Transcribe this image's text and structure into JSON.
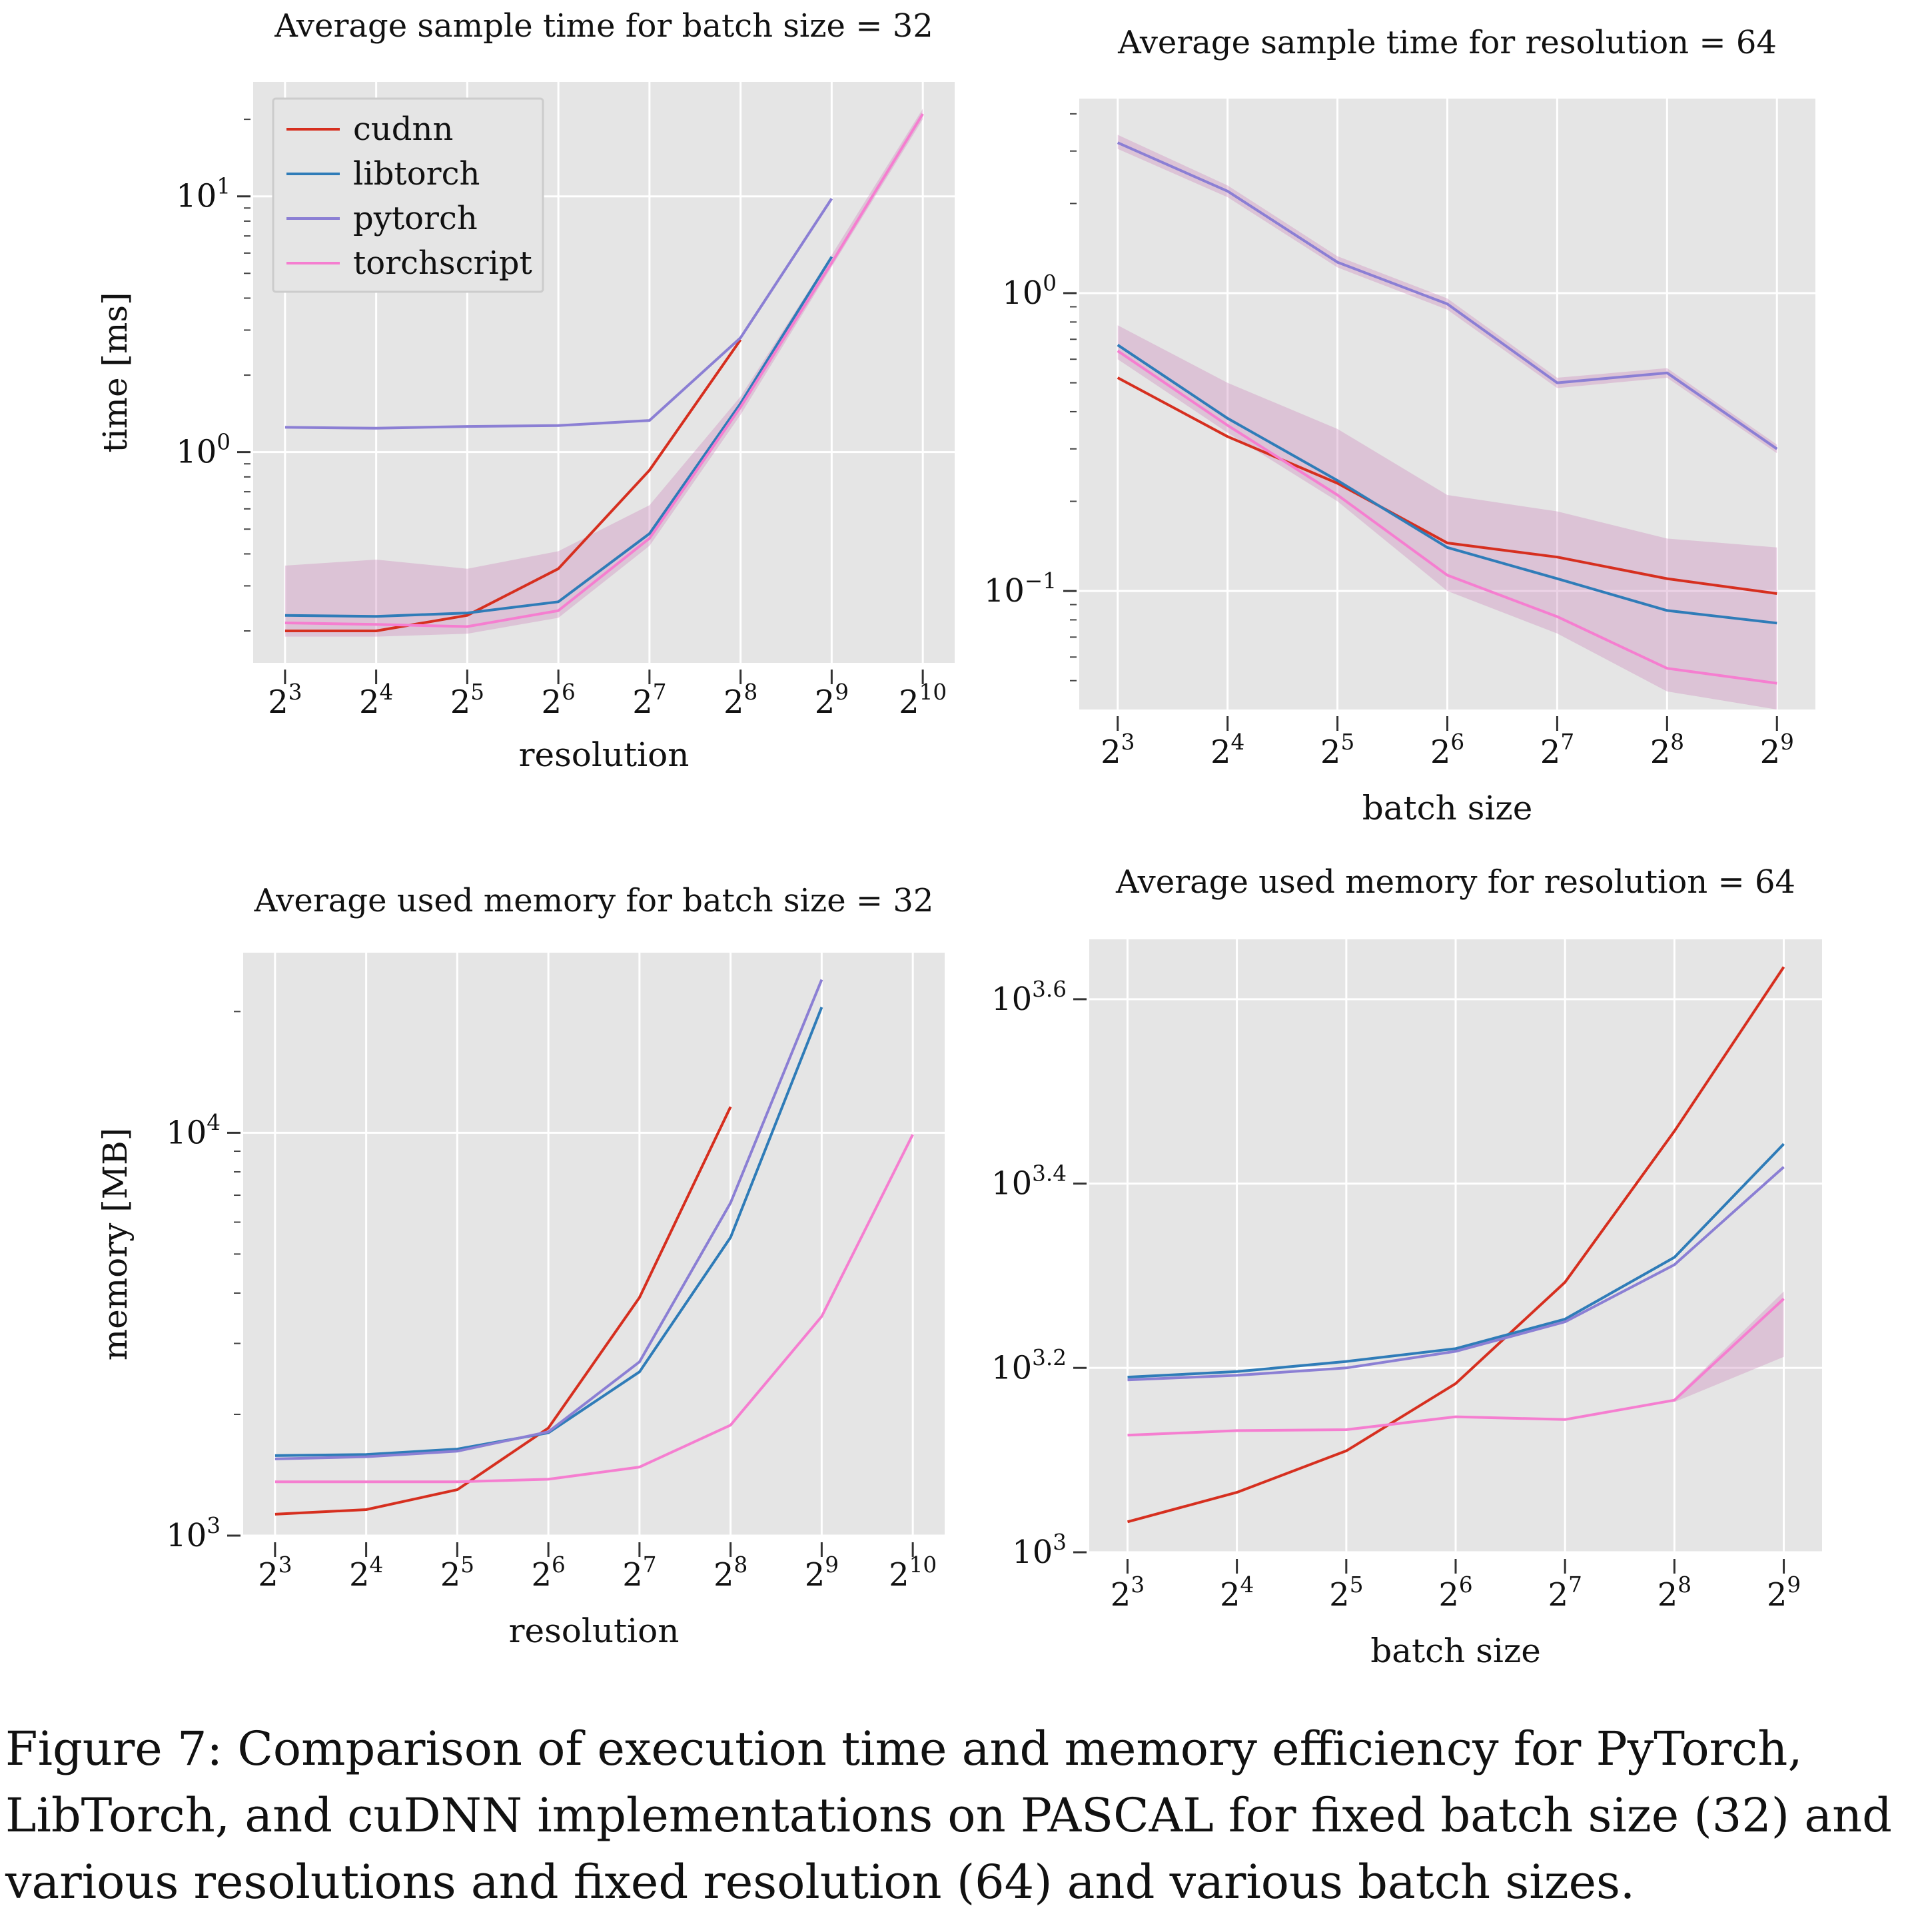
{
  "legend": {
    "entries": [
      {
        "name": "cudnn",
        "color": "#d62f1f"
      },
      {
        "name": "libtorch",
        "color": "#2f7cb8"
      },
      {
        "name": "pytorch",
        "color": "#8b7fd4"
      },
      {
        "name": "torchscript",
        "color": "#f57ed0"
      }
    ]
  },
  "caption": "Figure 7: Comparison of execution time and memory efficiency for PyTorch, LibTorch, and cuDNN implementations on PASCAL for fixed batch size (32) and various resolutions and fixed resolution (64) and various batch sizes.",
  "chart_data": [
    {
      "type": "line",
      "title": "Average sample time for batch size = 32",
      "xlabel": "resolution",
      "ylabel": "time [ms]",
      "x_ticks": [
        "2^3",
        "2^4",
        "2^5",
        "2^6",
        "2^7",
        "2^8",
        "2^9",
        "2^10"
      ],
      "x_exponents": [
        3,
        4,
        5,
        6,
        7,
        8,
        9,
        10
      ],
      "y_scale": "log",
      "ylim": [
        0.15,
        28
      ],
      "y_ticks": [
        {
          "value": 1,
          "label": "10^0"
        },
        {
          "value": 10,
          "label": "10^1"
        }
      ],
      "grid": true,
      "legend": "top-left",
      "series": [
        {
          "name": "cudnn",
          "x": [
            8,
            16,
            32,
            64,
            128,
            256
          ],
          "values": [
            0.2,
            0.2,
            0.23,
            0.35,
            0.85,
            2.75
          ]
        },
        {
          "name": "libtorch",
          "x": [
            8,
            16,
            32,
            64,
            128,
            256,
            512
          ],
          "values": [
            0.23,
            0.228,
            0.235,
            0.26,
            0.48,
            1.55,
            5.8
          ]
        },
        {
          "name": "pytorch",
          "x": [
            8,
            16,
            32,
            64,
            128,
            256,
            512
          ],
          "values": [
            1.25,
            1.24,
            1.26,
            1.27,
            1.33,
            2.8,
            9.8
          ]
        },
        {
          "name": "torchscript",
          "x": [
            8,
            16,
            32,
            64,
            128,
            256,
            512,
            1024
          ],
          "values": [
            0.215,
            0.212,
            0.208,
            0.24,
            0.46,
            1.5,
            5.5,
            21
          ]
        }
      ],
      "bands": [
        {
          "x": [
            8,
            16,
            32,
            64,
            128,
            256,
            512,
            1024
          ],
          "low": [
            0.19,
            0.19,
            0.195,
            0.225,
            0.43,
            1.4,
            5.3,
            20
          ],
          "high": [
            0.36,
            0.38,
            0.35,
            0.41,
            0.62,
            1.65,
            5.9,
            22
          ]
        }
      ]
    },
    {
      "type": "line",
      "title": "Average sample time for resolution = 64",
      "xlabel": "batch size",
      "ylabel": "",
      "x_ticks": [
        "2^3",
        "2^4",
        "2^5",
        "2^6",
        "2^7",
        "2^8",
        "2^9"
      ],
      "x_exponents": [
        3,
        4,
        5,
        6,
        7,
        8,
        9
      ],
      "y_scale": "log",
      "ylim": [
        0.04,
        4.5
      ],
      "y_ticks": [
        {
          "value": 0.1,
          "label": "10^-1"
        },
        {
          "value": 1,
          "label": "10^0"
        }
      ],
      "grid": true,
      "series": [
        {
          "name": "cudnn",
          "x": [
            8,
            16,
            32,
            64,
            128,
            256,
            512
          ],
          "values": [
            0.52,
            0.33,
            0.23,
            0.145,
            0.13,
            0.11,
            0.098
          ]
        },
        {
          "name": "libtorch",
          "x": [
            8,
            16,
            32,
            64,
            128,
            256,
            512
          ],
          "values": [
            0.67,
            0.38,
            0.235,
            0.14,
            0.11,
            0.086,
            0.078
          ]
        },
        {
          "name": "pytorch",
          "x": [
            8,
            16,
            32,
            64,
            128,
            256,
            512
          ],
          "values": [
            3.2,
            2.2,
            1.27,
            0.92,
            0.5,
            0.54,
            0.3
          ]
        },
        {
          "name": "torchscript",
          "x": [
            8,
            16,
            32,
            64,
            128,
            256,
            512
          ],
          "values": [
            0.64,
            0.36,
            0.21,
            0.113,
            0.082,
            0.055,
            0.049
          ]
        }
      ],
      "bands": [
        {
          "x": [
            8,
            16,
            32,
            64,
            128,
            256,
            512
          ],
          "low": [
            0.6,
            0.34,
            0.2,
            0.1,
            0.072,
            0.046,
            0.04
          ],
          "high": [
            0.78,
            0.5,
            0.35,
            0.21,
            0.185,
            0.15,
            0.14
          ]
        },
        {
          "x": [
            8,
            16,
            32,
            64,
            128,
            256,
            512
          ],
          "low": [
            3.05,
            2.1,
            1.22,
            0.88,
            0.48,
            0.52,
            0.29
          ],
          "high": [
            3.4,
            2.3,
            1.33,
            0.96,
            0.52,
            0.56,
            0.31
          ]
        }
      ]
    },
    {
      "type": "line",
      "title": "Average used memory for batch size = 32",
      "xlabel": "resolution",
      "ylabel": "memory [MB]",
      "x_ticks": [
        "2^3",
        "2^4",
        "2^5",
        "2^6",
        "2^7",
        "2^8",
        "2^9",
        "2^10"
      ],
      "x_exponents": [
        3,
        4,
        5,
        6,
        7,
        8,
        9,
        10
      ],
      "y_scale": "log",
      "ylim": [
        1000,
        28000
      ],
      "y_ticks": [
        {
          "value": 1000,
          "label": "10^3"
        },
        {
          "value": 10000,
          "label": "10^4"
        }
      ],
      "grid": true,
      "series": [
        {
          "name": "cudnn",
          "x": [
            8,
            16,
            32,
            64,
            128,
            256
          ],
          "values": [
            1130,
            1160,
            1300,
            1850,
            3900,
            11600
          ]
        },
        {
          "name": "libtorch",
          "x": [
            8,
            16,
            32,
            64,
            128,
            256,
            512
          ],
          "values": [
            1580,
            1590,
            1640,
            1800,
            2550,
            5500,
            20500
          ]
        },
        {
          "name": "pytorch",
          "x": [
            8,
            16,
            32,
            64,
            128,
            256,
            512
          ],
          "values": [
            1550,
            1570,
            1620,
            1810,
            2700,
            6700,
            24000
          ]
        },
        {
          "name": "torchscript",
          "x": [
            8,
            16,
            32,
            64,
            128,
            256,
            512,
            1024
          ],
          "values": [
            1360,
            1360,
            1360,
            1380,
            1480,
            1880,
            3500,
            9900
          ]
        }
      ]
    },
    {
      "type": "line",
      "title": "Average used memory for resolution = 64",
      "xlabel": "batch size",
      "ylabel": "",
      "x_ticks": [
        "2^3",
        "2^4",
        "2^5",
        "2^6",
        "2^7",
        "2^8",
        "2^9"
      ],
      "x_exponents": [
        3,
        4,
        5,
        6,
        7,
        8,
        9
      ],
      "y_scale": "log10exp",
      "ylim": [
        3.0,
        3.665
      ],
      "y_ticks": [
        {
          "value": 3.0,
          "label": "10^3"
        },
        {
          "value": 3.2,
          "label": "10^3.2"
        },
        {
          "value": 3.4,
          "label": "10^3.4"
        },
        {
          "value": 3.6,
          "label": "10^3.6"
        }
      ],
      "grid": true,
      "series": [
        {
          "name": "cudnn",
          "x": [
            8,
            16,
            32,
            64,
            128,
            256,
            512
          ],
          "values": [
            3.033,
            3.065,
            3.11,
            3.183,
            3.293,
            3.457,
            3.635
          ]
        },
        {
          "name": "libtorch",
          "x": [
            8,
            16,
            32,
            64,
            128,
            256,
            512
          ],
          "values": [
            3.19,
            3.196,
            3.207,
            3.221,
            3.253,
            3.32,
            3.443
          ]
        },
        {
          "name": "pytorch",
          "x": [
            8,
            16,
            32,
            64,
            128,
            256,
            512
          ],
          "values": [
            3.187,
            3.192,
            3.2,
            3.218,
            3.25,
            3.312,
            3.418
          ]
        },
        {
          "name": "torchscript",
          "x": [
            8,
            16,
            32,
            64,
            128,
            256,
            512
          ],
          "values": [
            3.127,
            3.132,
            3.133,
            3.147,
            3.144,
            3.165,
            3.275
          ]
        }
      ],
      "bands": [
        {
          "x": [
            256,
            512
          ],
          "low": [
            3.163,
            3.212
          ],
          "high": [
            3.167,
            3.283
          ]
        }
      ]
    }
  ]
}
